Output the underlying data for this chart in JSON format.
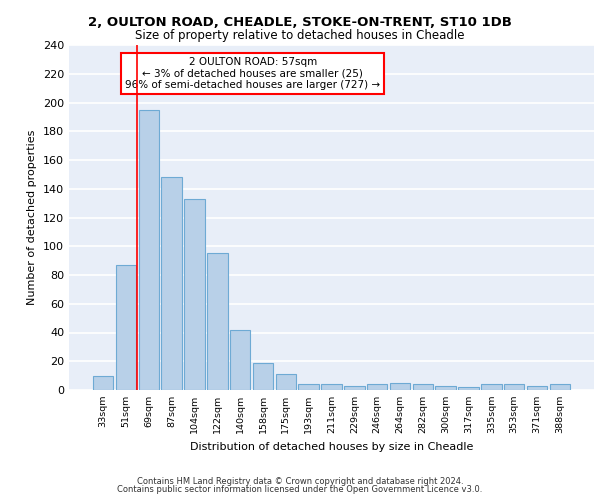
{
  "title_line1": "2, OULTON ROAD, CHEADLE, STOKE-ON-TRENT, ST10 1DB",
  "title_line2": "Size of property relative to detached houses in Cheadle",
  "xlabel": "Distribution of detached houses by size in Cheadle",
  "ylabel": "Number of detached properties",
  "categories": [
    "33sqm",
    "51sqm",
    "69sqm",
    "87sqm",
    "104sqm",
    "122sqm",
    "140sqm",
    "158sqm",
    "175sqm",
    "193sqm",
    "211sqm",
    "229sqm",
    "246sqm",
    "264sqm",
    "282sqm",
    "300sqm",
    "317sqm",
    "335sqm",
    "353sqm",
    "371sqm",
    "388sqm"
  ],
  "values": [
    10,
    87,
    195,
    148,
    133,
    95,
    42,
    19,
    11,
    4,
    4,
    3,
    4,
    5,
    4,
    3,
    2,
    4,
    4,
    3,
    4
  ],
  "bar_color": "#b8d0e8",
  "bar_edge_color": "#6eaad4",
  "marker_line_color": "red",
  "annotation_text": "2 OULTON ROAD: 57sqm\n← 3% of detached houses are smaller (25)\n96% of semi-detached houses are larger (727) →",
  "annotation_box_color": "white",
  "annotation_box_edge": "red",
  "ylim": [
    0,
    240
  ],
  "yticks": [
    0,
    20,
    40,
    60,
    80,
    100,
    120,
    140,
    160,
    180,
    200,
    220,
    240
  ],
  "footer_line1": "Contains HM Land Registry data © Crown copyright and database right 2024.",
  "footer_line2": "Contains public sector information licensed under the Open Government Licence v3.0.",
  "plot_background": "#e8eef8",
  "grid_color": "white"
}
